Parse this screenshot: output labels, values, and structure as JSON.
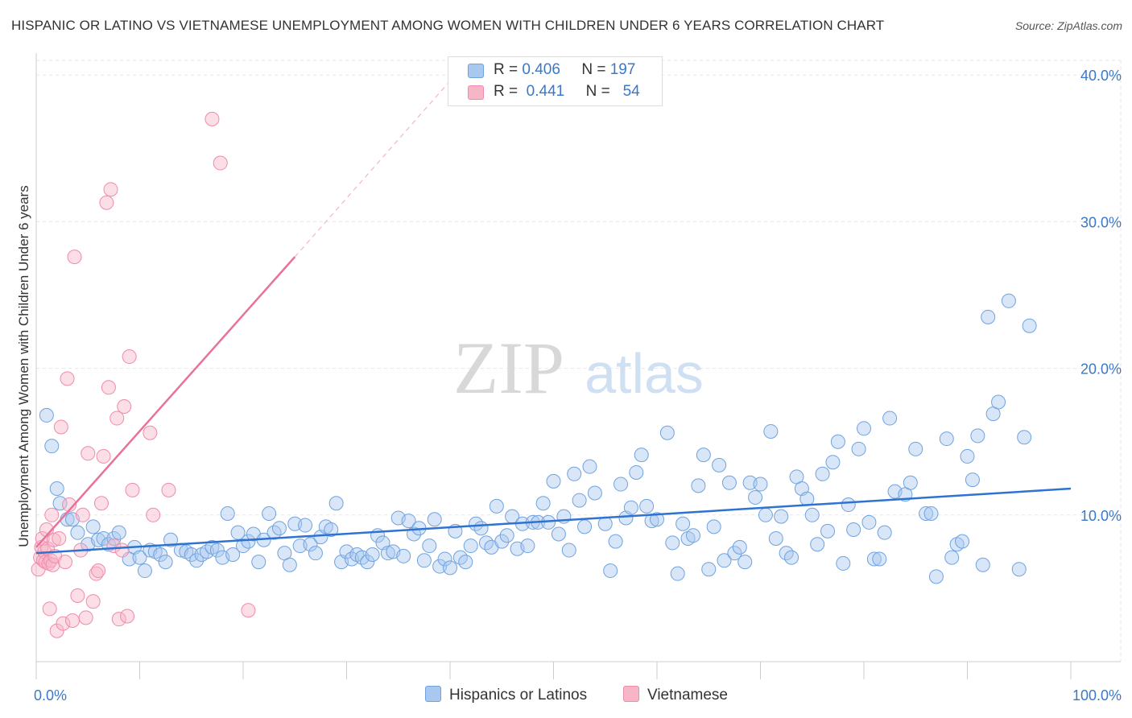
{
  "title": "HISPANIC OR LATINO VS VIETNAMESE UNEMPLOYMENT AMONG WOMEN WITH CHILDREN UNDER 6 YEARS CORRELATION CHART",
  "source": "Source: ZipAtlas.com",
  "watermark": {
    "zip": "ZIP",
    "atlas": "atlas"
  },
  "legend": {
    "r_label": "R =",
    "n_label": "N =",
    "rows": [
      {
        "r": "0.406",
        "n": "197",
        "color": "#a9c8f0"
      },
      {
        "r": "0.441",
        "n": "54",
        "color": "#f7b6c8"
      }
    ]
  },
  "bottom_legend": [
    {
      "label": "Hispanics or Latinos",
      "color": "#a9c8f0"
    },
    {
      "label": "Vietnamese",
      "color": "#f7b6c8"
    }
  ],
  "chart_data": {
    "type": "scatter",
    "xlabel": "",
    "ylabel": "Unemployment Among Women with Children Under 6 years",
    "x_ticks": [
      "0.0%",
      "100.0%"
    ],
    "y_ticks": [
      "10.0%",
      "20.0%",
      "30.0%",
      "40.0%"
    ],
    "xlim": [
      0,
      100
    ],
    "ylim": [
      0,
      41
    ],
    "grid": true,
    "legend_position": "top-center",
    "colors": {
      "hispanic": "#6fa3e0",
      "vietnamese": "#f08bab",
      "hispanic_line": "#2f73d0",
      "vietnamese_line": "#e8729a",
      "tick_text": "#3b78c9"
    },
    "series": [
      {
        "name": "Hispanics or Latinos",
        "trend": {
          "x": [
            0,
            100
          ],
          "y": [
            7.4,
            11.8
          ]
        },
        "points": [
          [
            1,
            16.8
          ],
          [
            1.5,
            14.7
          ],
          [
            2,
            11.8
          ],
          [
            2.3,
            10.8
          ],
          [
            3,
            9.7
          ],
          [
            3.5,
            9.7
          ],
          [
            4,
            8.8
          ],
          [
            5,
            8.0
          ],
          [
            5.5,
            9.2
          ],
          [
            6,
            8.3
          ],
          [
            6.5,
            8.4
          ],
          [
            7,
            8.0
          ],
          [
            7.5,
            8.4
          ],
          [
            8,
            8.8
          ],
          [
            9,
            7.0
          ],
          [
            9.5,
            7.8
          ],
          [
            10,
            7.1
          ],
          [
            10.5,
            6.2
          ],
          [
            11,
            7.6
          ],
          [
            11.5,
            7.5
          ],
          [
            12,
            7.3
          ],
          [
            12.5,
            6.8
          ],
          [
            13,
            8.3
          ],
          [
            14,
            7.6
          ],
          [
            14.5,
            7.5
          ],
          [
            15,
            7.3
          ],
          [
            15.5,
            6.9
          ],
          [
            16,
            7.3
          ],
          [
            16.5,
            7.5
          ],
          [
            17,
            7.8
          ],
          [
            17.5,
            7.6
          ],
          [
            18,
            7.1
          ],
          [
            18.5,
            10.1
          ],
          [
            19,
            7.3
          ],
          [
            19.5,
            8.8
          ],
          [
            20,
            7.9
          ],
          [
            20.5,
            8.2
          ],
          [
            21,
            8.7
          ],
          [
            21.5,
            6.8
          ],
          [
            22,
            8.3
          ],
          [
            22.5,
            10.1
          ],
          [
            23,
            8.8
          ],
          [
            23.5,
            9.1
          ],
          [
            24,
            7.4
          ],
          [
            24.5,
            6.6
          ],
          [
            25,
            9.4
          ],
          [
            25.5,
            7.9
          ],
          [
            26,
            9.3
          ],
          [
            26.5,
            8.0
          ],
          [
            27,
            7.4
          ],
          [
            27.5,
            8.5
          ],
          [
            28,
            9.2
          ],
          [
            28.5,
            9.0
          ],
          [
            29,
            10.8
          ],
          [
            29.5,
            6.8
          ],
          [
            30,
            7.5
          ],
          [
            30.5,
            7.0
          ],
          [
            31,
            7.3
          ],
          [
            31.5,
            7.1
          ],
          [
            32,
            6.8
          ],
          [
            32.5,
            7.3
          ],
          [
            33,
            8.6
          ],
          [
            33.5,
            8.1
          ],
          [
            34,
            7.4
          ],
          [
            34.5,
            7.5
          ],
          [
            35,
            9.8
          ],
          [
            35.5,
            7.2
          ],
          [
            36,
            9.6
          ],
          [
            36.5,
            8.7
          ],
          [
            37,
            9.1
          ],
          [
            37.5,
            6.9
          ],
          [
            38,
            7.9
          ],
          [
            38.5,
            9.7
          ],
          [
            39,
            6.5
          ],
          [
            39.5,
            7.0
          ],
          [
            40,
            6.4
          ],
          [
            40.5,
            8.9
          ],
          [
            41,
            7.1
          ],
          [
            41.5,
            6.8
          ],
          [
            42,
            7.9
          ],
          [
            42.5,
            9.4
          ],
          [
            43,
            9.1
          ],
          [
            43.5,
            8.1
          ],
          [
            44,
            7.8
          ],
          [
            44.5,
            10.6
          ],
          [
            45,
            8.2
          ],
          [
            45.5,
            8.6
          ],
          [
            46,
            9.9
          ],
          [
            46.5,
            7.7
          ],
          [
            47,
            9.4
          ],
          [
            47.5,
            7.9
          ],
          [
            48,
            9.5
          ],
          [
            48.5,
            9.5
          ],
          [
            49,
            10.8
          ],
          [
            49.5,
            9.5
          ],
          [
            50,
            12.3
          ],
          [
            50.5,
            8.7
          ],
          [
            51,
            9.9
          ],
          [
            51.5,
            7.6
          ],
          [
            52,
            12.8
          ],
          [
            52.5,
            11.0
          ],
          [
            53,
            9.2
          ],
          [
            53.5,
            13.3
          ],
          [
            54,
            11.5
          ],
          [
            55,
            9.4
          ],
          [
            55.5,
            6.2
          ],
          [
            56,
            8.2
          ],
          [
            56.5,
            12.1
          ],
          [
            57,
            9.8
          ],
          [
            57.5,
            10.5
          ],
          [
            58,
            12.9
          ],
          [
            58.5,
            14.1
          ],
          [
            59,
            10.6
          ],
          [
            59.5,
            9.6
          ],
          [
            60,
            9.7
          ],
          [
            61,
            15.6
          ],
          [
            61.5,
            8.1
          ],
          [
            62,
            6.0
          ],
          [
            62.5,
            9.4
          ],
          [
            63,
            8.4
          ],
          [
            63.5,
            8.6
          ],
          [
            64,
            12.0
          ],
          [
            64.5,
            14.1
          ],
          [
            65,
            6.3
          ],
          [
            65.5,
            9.2
          ],
          [
            66,
            13.4
          ],
          [
            66.5,
            6.9
          ],
          [
            67,
            12.2
          ],
          [
            67.5,
            7.4
          ],
          [
            68,
            7.8
          ],
          [
            68.5,
            6.8
          ],
          [
            69,
            12.2
          ],
          [
            69.5,
            11.2
          ],
          [
            70,
            12.1
          ],
          [
            70.5,
            10.0
          ],
          [
            71,
            15.7
          ],
          [
            71.5,
            8.4
          ],
          [
            72,
            9.9
          ],
          [
            72.5,
            7.4
          ],
          [
            73,
            7.1
          ],
          [
            73.5,
            12.6
          ],
          [
            74,
            11.8
          ],
          [
            74.5,
            11.1
          ],
          [
            75,
            10.0
          ],
          [
            75.5,
            8.0
          ],
          [
            76,
            12.8
          ],
          [
            76.5,
            8.9
          ],
          [
            77,
            13.6
          ],
          [
            77.5,
            15.0
          ],
          [
            78,
            6.7
          ],
          [
            78.5,
            10.7
          ],
          [
            79,
            9.0
          ],
          [
            79.5,
            14.5
          ],
          [
            80,
            15.9
          ],
          [
            80.5,
            9.5
          ],
          [
            81,
            7.0
          ],
          [
            81.5,
            7.0
          ],
          [
            82,
            8.8
          ],
          [
            82.5,
            16.6
          ],
          [
            83,
            11.6
          ],
          [
            84,
            11.4
          ],
          [
            84.5,
            12.2
          ],
          [
            85,
            14.5
          ],
          [
            86,
            10.1
          ],
          [
            86.5,
            10.1
          ],
          [
            87,
            5.8
          ],
          [
            88,
            15.2
          ],
          [
            88.5,
            7.1
          ],
          [
            89,
            8.0
          ],
          [
            89.5,
            8.2
          ],
          [
            90,
            14.0
          ],
          [
            90.5,
            12.4
          ],
          [
            91,
            15.4
          ],
          [
            91.5,
            6.6
          ],
          [
            92,
            23.5
          ],
          [
            92.5,
            16.9
          ],
          [
            93,
            17.7
          ],
          [
            94,
            24.6
          ],
          [
            95,
            6.3
          ],
          [
            95.5,
            15.3
          ],
          [
            96,
            22.9
          ]
        ]
      },
      {
        "name": "Vietnamese",
        "trend": {
          "x": [
            0,
            25
          ],
          "y": [
            7.8,
            27.6
          ]
        },
        "trend_dashed": {
          "x": [
            25,
            40.5
          ],
          "y": [
            27.6,
            40
          ]
        },
        "points": [
          [
            0.2,
            6.3
          ],
          [
            0.4,
            7.1
          ],
          [
            0.5,
            7.8
          ],
          [
            0.6,
            8.4
          ],
          [
            0.7,
            6.9
          ],
          [
            0.8,
            7.5
          ],
          [
            0.9,
            6.8
          ],
          [
            1,
            9.0
          ],
          [
            1.1,
            7.7
          ],
          [
            1.2,
            6.7
          ],
          [
            1.3,
            3.6
          ],
          [
            1.4,
            6.9
          ],
          [
            1.5,
            10.0
          ],
          [
            1.6,
            6.6
          ],
          [
            1.7,
            8.3
          ],
          [
            1.8,
            7.2
          ],
          [
            2,
            2.1
          ],
          [
            2.2,
            8.4
          ],
          [
            2.4,
            16.0
          ],
          [
            2.6,
            2.6
          ],
          [
            2.8,
            6.8
          ],
          [
            3,
            19.3
          ],
          [
            3.2,
            10.7
          ],
          [
            3.5,
            2.8
          ],
          [
            3.7,
            27.6
          ],
          [
            4,
            4.5
          ],
          [
            4.3,
            7.6
          ],
          [
            4.5,
            10.0
          ],
          [
            4.8,
            3.0
          ],
          [
            5,
            14.2
          ],
          [
            5.5,
            4.1
          ],
          [
            5.8,
            6.0
          ],
          [
            6,
            6.2
          ],
          [
            6.3,
            10.8
          ],
          [
            6.5,
            14.0
          ],
          [
            6.8,
            31.3
          ],
          [
            7,
            18.7
          ],
          [
            7.2,
            32.2
          ],
          [
            7.5,
            7.9
          ],
          [
            7.8,
            16.6
          ],
          [
            8,
            2.9
          ],
          [
            8.3,
            7.6
          ],
          [
            8.5,
            17.4
          ],
          [
            8.8,
            3.1
          ],
          [
            9,
            20.8
          ],
          [
            9.3,
            11.7
          ],
          [
            11,
            15.6
          ],
          [
            11.3,
            10.0
          ],
          [
            12.8,
            11.7
          ],
          [
            17,
            37.0
          ],
          [
            17.8,
            34.0
          ],
          [
            20.5,
            3.5
          ]
        ]
      }
    ]
  }
}
